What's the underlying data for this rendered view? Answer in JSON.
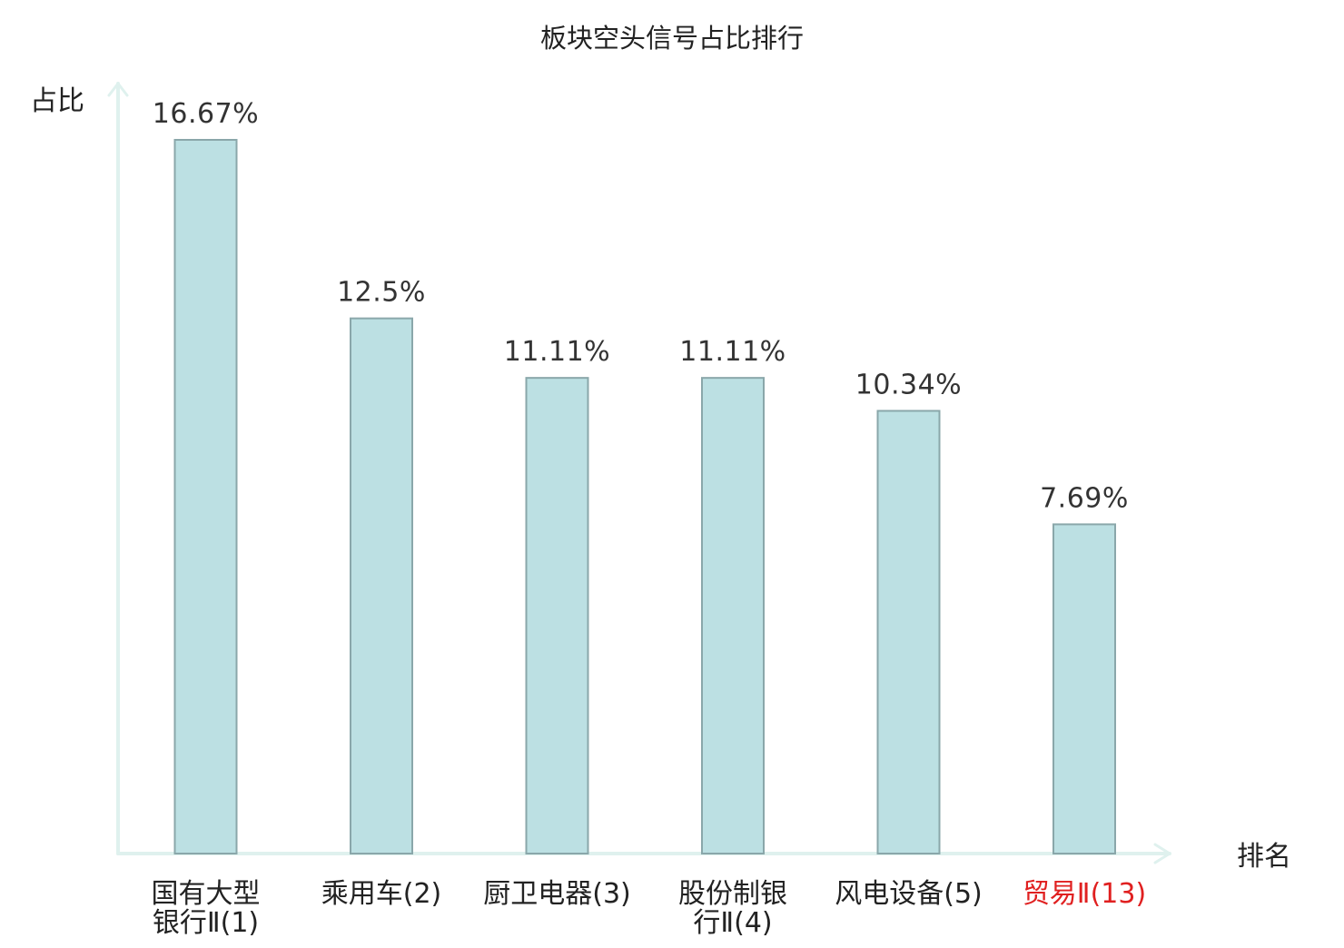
{
  "chart_data": {
    "type": "bar",
    "title": "板块空头信号占比排行",
    "ylabel": "占比",
    "xlabel": "排名",
    "ylim": [
      0,
      16.67
    ],
    "grid": false,
    "legend": "none",
    "categories": [
      [
        "国有大型",
        "银行Ⅱ(1)"
      ],
      [
        "乘用车(2)"
      ],
      [
        "厨卫电器(3)"
      ],
      [
        "股份制银",
        "行Ⅱ(4)"
      ],
      [
        "风电设备(5)"
      ],
      [
        "贸易Ⅱ(13)"
      ]
    ],
    "values": [
      16.67,
      12.5,
      11.11,
      11.11,
      10.34,
      7.69
    ],
    "value_labels": [
      "16.67%",
      "12.5%",
      "11.11%",
      "11.11%",
      "10.34%",
      "7.69%"
    ],
    "highlight_index": 5
  },
  "colors": {
    "bar_fill": "#bce0e3",
    "bar_stroke": "#8aa7aa",
    "axis": "#dff1ee",
    "text": "#222222",
    "value_text": "#333333",
    "highlight_text": "#e02020"
  }
}
